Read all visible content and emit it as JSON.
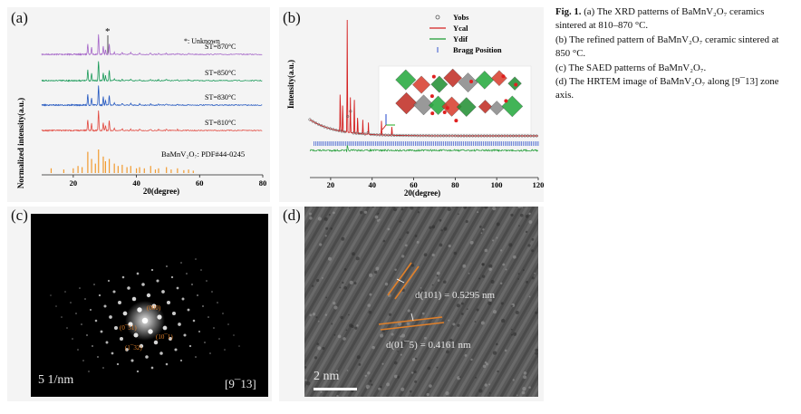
{
  "panels": {
    "a": {
      "label": "(a)",
      "legend_unknown": "*: Unknown",
      "star": "*",
      "ylabel": "Normalized intensity(a.u.)",
      "xlabel": "20(degree)",
      "xticks": [
        "20",
        "40",
        "60",
        "80"
      ],
      "series": [
        {
          "label": "ST=870°C",
          "color": "#a566c8"
        },
        {
          "label": "ST=850°C",
          "color": "#1a9a59"
        },
        {
          "label": "ST=830°C",
          "color": "#2458c0"
        },
        {
          "label": "ST=810°C",
          "color": "#e24a40"
        }
      ],
      "reference_label": "BaMnV₂O₇:  PDF#44-0245",
      "reference_color": "#f29a2e"
    },
    "b": {
      "label": "(b)",
      "ylabel": "Intensity(a.u.)",
      "xlabel": "20(degree)",
      "xticks": [
        "20",
        "40",
        "60",
        "80",
        "100",
        "120"
      ],
      "legend": [
        {
          "label": "Yobs",
          "color": "#555555"
        },
        {
          "label": "Ycal",
          "color": "#d42020"
        },
        {
          "label": "Ydif",
          "color": "#1a9a30"
        },
        {
          "label": "Bragg Position",
          "color": "#3355cc"
        }
      ]
    },
    "c": {
      "label": "(c)",
      "scale": "5 1/nm",
      "zone": "[9¯13]",
      "spots": [
        "(000)",
        "(0¯51)",
        "(10¯1)",
        "(1¯32)"
      ]
    },
    "d": {
      "label": "(d)",
      "scale": "2 nm",
      "d1": "d(101) = 0.5295 nm",
      "d2": "d(01¯5) = 0.4161 nm"
    }
  },
  "caption": {
    "lead": "Fig. 1.",
    "lines": [
      "(a) The XRD patterns of BaMnV₂O₇ ceramics sintered at 810–870 °C.",
      "(b) The refined pattern of BaMnV₂O₇ ceramic sintered at 850 °C.",
      "(c) The SAED patterns of BaMnV₂O₇.",
      "(d) The HRTEM image of BaMnV₂O₇ along [9¯13] zone axis."
    ]
  }
}
